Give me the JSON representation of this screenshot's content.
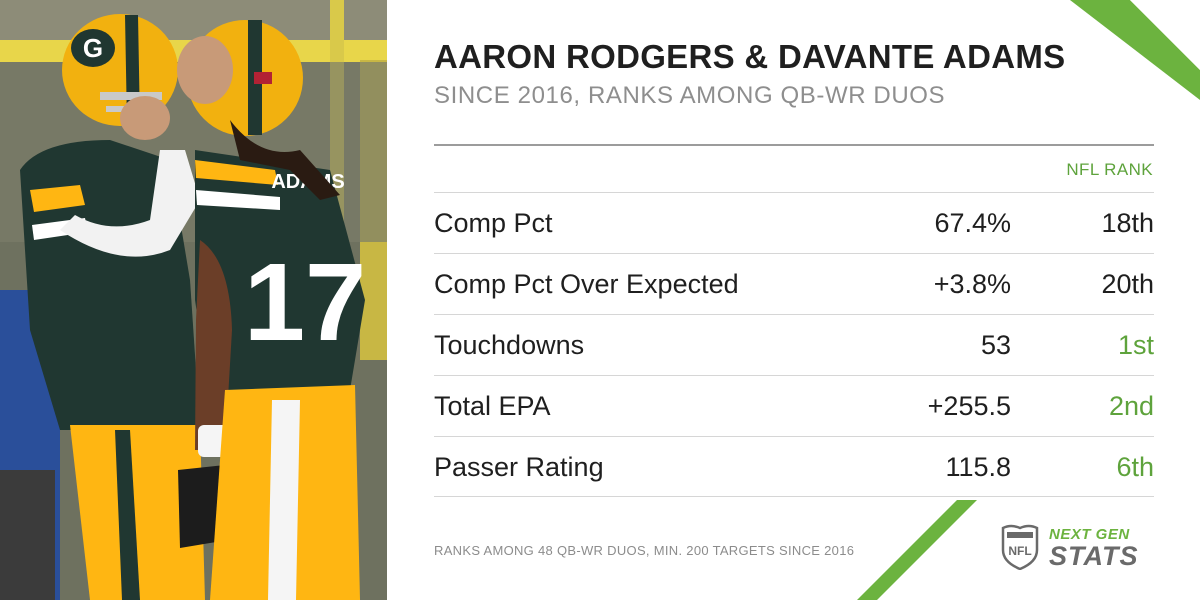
{
  "header": {
    "title": "AARON RODGERS & DAVANTE ADAMS",
    "subtitle": "SINCE 2016, RANKS AMONG QB-WR DUOS"
  },
  "table": {
    "rank_column_header": "NFL RANK",
    "rows": [
      {
        "label": "Comp Pct",
        "value": "67.4%",
        "rank": "18th",
        "rank_highlight": false
      },
      {
        "label": "Comp Pct Over Expected",
        "value": "+3.8%",
        "rank": "20th",
        "rank_highlight": false
      },
      {
        "label": "Touchdowns",
        "value": "53",
        "rank": "1st",
        "rank_highlight": true
      },
      {
        "label": "Total EPA",
        "value": "+255.5",
        "rank": "2nd",
        "rank_highlight": true
      },
      {
        "label": "Passer Rating",
        "value": "115.8",
        "rank": "6th",
        "rank_highlight": true
      }
    ]
  },
  "footnote": "RANKS AMONG 48 QB-WR DUOS, MIN. 200 TARGETS SINCE 2016",
  "branding": {
    "logo_icon": "nfl-shield-icon",
    "line1": "NEXT GEN",
    "line2": "STATS"
  },
  "photo": {
    "jersey_number": "17",
    "nameplate": "ADAMS",
    "helmet_logo": "G"
  },
  "colors": {
    "accent_green": "#5ea33c",
    "packers_green": "#203731",
    "packers_gold": "#ffb612",
    "title_text": "#1f1f1f",
    "subtitle_text": "#8e8e8e"
  }
}
